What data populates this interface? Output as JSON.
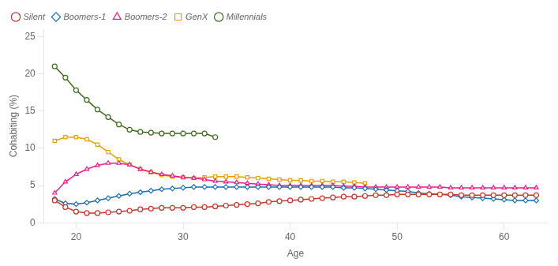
{
  "chart_data": {
    "type": "line",
    "xlabel": "Age",
    "ylabel": "Cohabiting (%)",
    "xlim": [
      17,
      64
    ],
    "ylim": [
      0,
      26
    ],
    "xticks": [
      20,
      30,
      40,
      50,
      60
    ],
    "yticks": [
      0,
      5,
      10,
      15,
      20,
      25
    ],
    "grid": false,
    "legend": "upper left",
    "series": [
      {
        "name": "Silent",
        "color": "#c0392b",
        "marker": "circle",
        "x": [
          18,
          19,
          20,
          21,
          22,
          23,
          24,
          25,
          26,
          27,
          28,
          29,
          30,
          31,
          32,
          33,
          34,
          35,
          36,
          37,
          38,
          39,
          40,
          41,
          42,
          43,
          44,
          45,
          46,
          47,
          48,
          49,
          50,
          51,
          52,
          53,
          54,
          55,
          56,
          57,
          58,
          59,
          60,
          61,
          62,
          63
        ],
        "values": [
          3.0,
          2.1,
          1.5,
          1.3,
          1.3,
          1.4,
          1.5,
          1.6,
          1.8,
          1.9,
          2.0,
          2.0,
          2.0,
          2.1,
          2.1,
          2.2,
          2.3,
          2.4,
          2.5,
          2.6,
          2.8,
          2.9,
          3.0,
          3.1,
          3.2,
          3.3,
          3.4,
          3.5,
          3.5,
          3.6,
          3.7,
          3.7,
          3.8,
          3.8,
          3.8,
          3.8,
          3.8,
          3.8,
          3.7,
          3.7,
          3.7,
          3.7,
          3.7,
          3.7,
          3.7,
          3.7
        ]
      },
      {
        "name": "Boomers-1",
        "color": "#1a6faf",
        "marker": "diamond",
        "x": [
          18,
          19,
          20,
          21,
          22,
          23,
          24,
          25,
          26,
          27,
          28,
          29,
          30,
          31,
          32,
          33,
          34,
          35,
          36,
          37,
          38,
          39,
          40,
          41,
          42,
          43,
          44,
          45,
          46,
          47,
          48,
          49,
          50,
          51,
          52,
          53,
          54,
          55,
          56,
          57,
          58,
          59,
          60,
          61,
          62,
          63
        ],
        "values": [
          3.2,
          2.6,
          2.5,
          2.7,
          3.0,
          3.3,
          3.6,
          3.9,
          4.1,
          4.3,
          4.5,
          4.6,
          4.7,
          4.8,
          4.8,
          4.8,
          4.8,
          4.8,
          4.8,
          4.8,
          4.8,
          4.8,
          4.8,
          4.8,
          4.8,
          4.8,
          4.8,
          4.7,
          4.7,
          4.6,
          4.5,
          4.4,
          4.3,
          4.2,
          4.0,
          3.9,
          3.8,
          3.7,
          3.5,
          3.4,
          3.3,
          3.2,
          3.1,
          3.0,
          3.0,
          3.0
        ]
      },
      {
        "name": "Boomers-2",
        "color": "#e91e8c",
        "marker": "triangle",
        "x": [
          18,
          19,
          20,
          21,
          22,
          23,
          24,
          25,
          26,
          27,
          28,
          29,
          30,
          31,
          32,
          33,
          34,
          35,
          36,
          37,
          38,
          39,
          40,
          41,
          42,
          43,
          44,
          45,
          46,
          47,
          48,
          49,
          50,
          51,
          52,
          53,
          54,
          55,
          56,
          57,
          58,
          59,
          60,
          61,
          62,
          63
        ],
        "values": [
          4.0,
          5.5,
          6.5,
          7.2,
          7.7,
          8.0,
          8.0,
          7.8,
          7.2,
          6.8,
          6.5,
          6.3,
          6.1,
          6.0,
          5.8,
          5.6,
          5.5,
          5.4,
          5.3,
          5.2,
          5.1,
          5.0,
          5.0,
          5.0,
          5.0,
          5.0,
          5.0,
          4.9,
          4.9,
          4.8,
          4.8,
          4.8,
          4.8,
          4.8,
          4.8,
          4.8,
          4.8,
          4.7,
          4.7,
          4.7,
          4.7,
          4.7,
          4.7,
          4.7,
          4.7,
          4.7
        ]
      },
      {
        "name": "GenX",
        "color": "#e8a000",
        "marker": "square",
        "x": [
          18,
          19,
          20,
          21,
          22,
          23,
          24,
          25,
          26,
          27,
          28,
          29,
          30,
          31,
          32,
          33,
          34,
          35,
          36,
          37,
          38,
          39,
          40,
          41,
          42,
          43,
          44,
          45,
          46,
          47
        ],
        "values": [
          11.0,
          11.5,
          11.5,
          11.2,
          10.5,
          9.5,
          8.5,
          7.8,
          7.2,
          6.8,
          6.4,
          6.2,
          6.1,
          6.0,
          6.1,
          6.2,
          6.2,
          6.2,
          6.1,
          6.0,
          5.9,
          5.8,
          5.7,
          5.7,
          5.6,
          5.6,
          5.5,
          5.5,
          5.4,
          5.3
        ]
      },
      {
        "name": "Millennials",
        "color": "#3d6b1e",
        "marker": "circle",
        "x": [
          18,
          19,
          20,
          21,
          22,
          23,
          24,
          25,
          26,
          27,
          28,
          29,
          30,
          31,
          32,
          33
        ],
        "values": [
          21.0,
          19.5,
          17.8,
          16.5,
          15.2,
          14.2,
          13.2,
          12.5,
          12.2,
          12.1,
          12.0,
          12.0,
          12.0,
          12.0,
          12.0,
          11.5
        ]
      }
    ]
  }
}
